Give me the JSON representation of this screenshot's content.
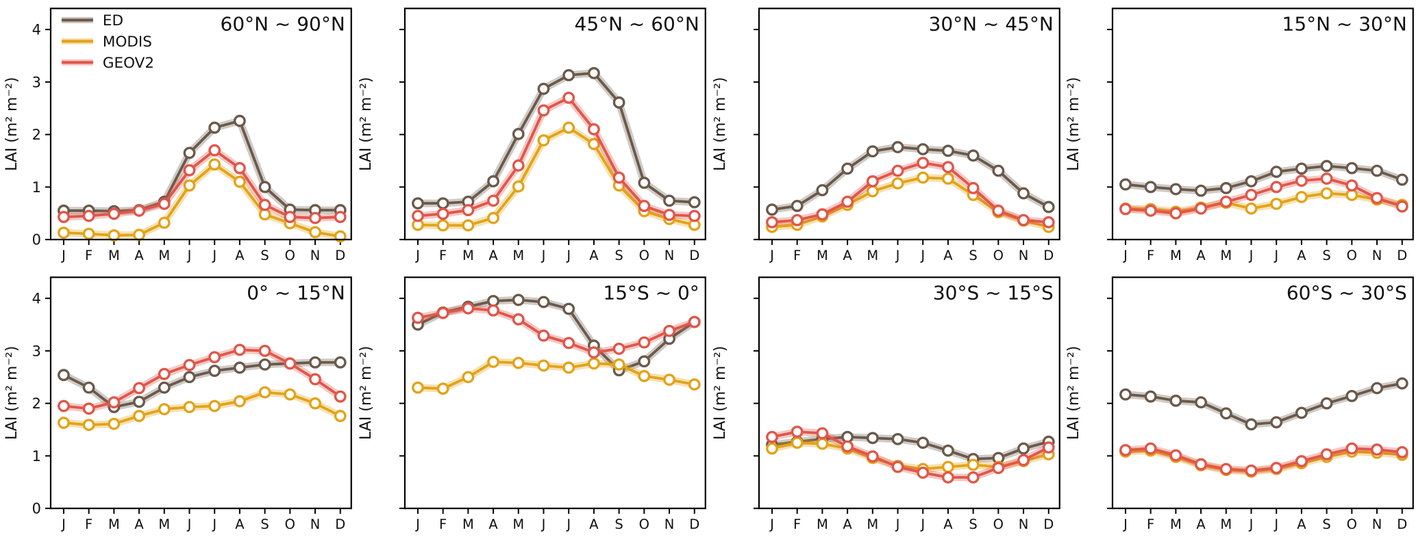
{
  "figure": {
    "ylabel": "LAI (m² m⁻²)",
    "months": [
      "J",
      "F",
      "M",
      "A",
      "M",
      "J",
      "J",
      "A",
      "S",
      "O",
      "N",
      "D"
    ],
    "yticks": [
      0,
      1,
      2,
      3,
      4
    ],
    "ylim": [
      0,
      4.4
    ],
    "legend": [
      "ED",
      "MODIS",
      "GEOV2"
    ],
    "series_colors": {
      "ED": "#6a594a",
      "MODIS": "#e2a317",
      "GEOV2": "#e0564a"
    },
    "axis_color": "#000000",
    "marker_fill": "#ffffff"
  },
  "chart_data": [
    {
      "type": "line",
      "title": "60°N ~ 90°N",
      "ylabel": "LAI (m² m⁻²)",
      "categories": [
        "J",
        "F",
        "M",
        "A",
        "M",
        "J",
        "J",
        "A",
        "S",
        "O",
        "N",
        "D"
      ],
      "ylim": [
        0,
        4.4
      ],
      "yticks": [
        0,
        1,
        2,
        3,
        4
      ],
      "y_tick_labels_visible": true,
      "legend_visible": true,
      "legend_position": "upper-left",
      "series": [
        {
          "name": "ED",
          "values": [
            0.55,
            0.55,
            0.54,
            0.56,
            0.72,
            1.65,
            2.13,
            2.26,
            1.0,
            0.57,
            0.56,
            0.56
          ]
        },
        {
          "name": "MODIS",
          "values": [
            0.13,
            0.11,
            0.08,
            0.09,
            0.32,
            1.03,
            1.43,
            1.1,
            0.48,
            0.31,
            0.14,
            0.06
          ]
        },
        {
          "name": "GEOV2",
          "values": [
            0.43,
            0.45,
            0.49,
            0.55,
            0.68,
            1.32,
            1.7,
            1.36,
            0.66,
            0.43,
            0.41,
            0.43
          ]
        }
      ]
    },
    {
      "type": "line",
      "title": "45°N ~ 60°N",
      "ylabel": "LAI (m² m⁻²)",
      "categories": [
        "J",
        "F",
        "M",
        "A",
        "M",
        "J",
        "J",
        "A",
        "S",
        "O",
        "N",
        "D"
      ],
      "ylim": [
        0,
        4.4
      ],
      "yticks": [
        0,
        1,
        2,
        3,
        4
      ],
      "y_tick_labels_visible": false,
      "legend_visible": false,
      "series": [
        {
          "name": "ED",
          "values": [
            0.69,
            0.69,
            0.72,
            1.11,
            2.01,
            2.87,
            3.13,
            3.17,
            2.61,
            1.08,
            0.74,
            0.71
          ]
        },
        {
          "name": "MODIS",
          "values": [
            0.28,
            0.27,
            0.27,
            0.41,
            1.01,
            1.89,
            2.13,
            1.82,
            1.03,
            0.54,
            0.39,
            0.28
          ]
        },
        {
          "name": "GEOV2",
          "values": [
            0.45,
            0.49,
            0.56,
            0.74,
            1.41,
            2.46,
            2.7,
            2.1,
            1.18,
            0.64,
            0.47,
            0.45
          ]
        }
      ]
    },
    {
      "type": "line",
      "title": "30°N ~ 45°N",
      "ylabel": "LAI (m² m⁻²)",
      "categories": [
        "J",
        "F",
        "M",
        "A",
        "M",
        "J",
        "J",
        "A",
        "S",
        "O",
        "N",
        "D"
      ],
      "ylim": [
        0,
        4.4
      ],
      "yticks": [
        0,
        1,
        2,
        3,
        4
      ],
      "y_tick_labels_visible": false,
      "legend_visible": false,
      "series": [
        {
          "name": "ED",
          "values": [
            0.57,
            0.64,
            0.94,
            1.35,
            1.68,
            1.76,
            1.72,
            1.69,
            1.6,
            1.31,
            0.88,
            0.62
          ]
        },
        {
          "name": "MODIS",
          "values": [
            0.24,
            0.28,
            0.44,
            0.66,
            0.92,
            1.07,
            1.18,
            1.16,
            0.85,
            0.52,
            0.36,
            0.24
          ]
        },
        {
          "name": "GEOV2",
          "values": [
            0.33,
            0.37,
            0.48,
            0.72,
            1.11,
            1.31,
            1.46,
            1.38,
            0.98,
            0.55,
            0.37,
            0.33
          ]
        }
      ]
    },
    {
      "type": "line",
      "title": "15°N ~ 30°N",
      "ylabel": "LAI (m² m⁻²)",
      "categories": [
        "J",
        "F",
        "M",
        "A",
        "M",
        "J",
        "J",
        "A",
        "S",
        "O",
        "N",
        "D"
      ],
      "ylim": [
        0,
        4.4
      ],
      "yticks": [
        0,
        1,
        2,
        3,
        4
      ],
      "y_tick_labels_visible": false,
      "legend_visible": false,
      "series": [
        {
          "name": "ED",
          "values": [
            1.05,
            1.0,
            0.96,
            0.93,
            0.98,
            1.11,
            1.29,
            1.35,
            1.4,
            1.36,
            1.31,
            1.14
          ]
        },
        {
          "name": "MODIS",
          "values": [
            0.59,
            0.58,
            0.53,
            0.61,
            0.7,
            0.59,
            0.68,
            0.81,
            0.88,
            0.85,
            0.76,
            0.66
          ]
        },
        {
          "name": "GEOV2",
          "values": [
            0.58,
            0.55,
            0.5,
            0.59,
            0.72,
            0.85,
            1.0,
            1.12,
            1.16,
            1.03,
            0.79,
            0.63
          ]
        }
      ]
    },
    {
      "type": "line",
      "title": "0° ~ 15°N",
      "ylabel": "LAI (m² m⁻²)",
      "categories": [
        "J",
        "F",
        "M",
        "A",
        "M",
        "J",
        "J",
        "A",
        "S",
        "O",
        "N",
        "D"
      ],
      "ylim": [
        0,
        4.4
      ],
      "yticks": [
        0,
        1,
        2,
        3,
        4
      ],
      "y_tick_labels_visible": true,
      "legend_visible": false,
      "series": [
        {
          "name": "ED",
          "values": [
            2.54,
            2.3,
            1.93,
            2.03,
            2.3,
            2.5,
            2.62,
            2.68,
            2.74,
            2.76,
            2.78,
            2.78
          ]
        },
        {
          "name": "MODIS",
          "values": [
            1.63,
            1.59,
            1.61,
            1.76,
            1.89,
            1.93,
            1.95,
            2.04,
            2.21,
            2.17,
            2.0,
            1.76
          ]
        },
        {
          "name": "GEOV2",
          "values": [
            1.95,
            1.9,
            2.02,
            2.29,
            2.56,
            2.73,
            2.88,
            3.02,
            3.0,
            2.76,
            2.46,
            2.13
          ]
        }
      ]
    },
    {
      "type": "line",
      "title": "15°S ~ 0°",
      "ylabel": "LAI (m² m⁻²)",
      "categories": [
        "J",
        "F",
        "M",
        "A",
        "M",
        "J",
        "J",
        "A",
        "S",
        "O",
        "N",
        "D"
      ],
      "ylim": [
        0,
        4.4
      ],
      "yticks": [
        0,
        1,
        2,
        3,
        4
      ],
      "y_tick_labels_visible": false,
      "legend_visible": false,
      "series": [
        {
          "name": "ED",
          "values": [
            3.5,
            3.73,
            3.84,
            3.95,
            3.97,
            3.93,
            3.8,
            3.1,
            2.63,
            2.8,
            3.23,
            3.55
          ]
        },
        {
          "name": "MODIS",
          "values": [
            2.3,
            2.28,
            2.5,
            2.79,
            2.77,
            2.72,
            2.68,
            2.76,
            2.74,
            2.52,
            2.45,
            2.36
          ]
        },
        {
          "name": "GEOV2",
          "values": [
            3.63,
            3.72,
            3.81,
            3.77,
            3.6,
            3.29,
            3.15,
            2.97,
            3.04,
            3.16,
            3.38,
            3.55
          ]
        }
      ]
    },
    {
      "type": "line",
      "title": "30°S ~ 15°S",
      "ylabel": "LAI (m² m⁻²)",
      "categories": [
        "J",
        "F",
        "M",
        "A",
        "M",
        "J",
        "J",
        "A",
        "S",
        "O",
        "N",
        "D"
      ],
      "ylim": [
        0,
        4.4
      ],
      "yticks": [
        0,
        1,
        2,
        3,
        4
      ],
      "y_tick_labels_visible": false,
      "legend_visible": false,
      "series": [
        {
          "name": "ED",
          "values": [
            1.21,
            1.27,
            1.32,
            1.36,
            1.34,
            1.32,
            1.25,
            1.1,
            0.94,
            0.96,
            1.14,
            1.27
          ]
        },
        {
          "name": "MODIS",
          "values": [
            1.14,
            1.25,
            1.23,
            1.14,
            0.96,
            0.81,
            0.75,
            0.79,
            0.83,
            0.79,
            0.9,
            1.03
          ]
        },
        {
          "name": "GEOV2",
          "values": [
            1.36,
            1.46,
            1.43,
            1.18,
            0.99,
            0.79,
            0.68,
            0.59,
            0.59,
            0.77,
            0.92,
            1.16
          ]
        }
      ]
    },
    {
      "type": "line",
      "title": "60°S ~ 30°S",
      "ylabel": "LAI (m² m⁻²)",
      "categories": [
        "J",
        "F",
        "M",
        "A",
        "M",
        "J",
        "J",
        "A",
        "S",
        "O",
        "N",
        "D"
      ],
      "ylim": [
        0,
        4.4
      ],
      "yticks": [
        0,
        1,
        2,
        3,
        4
      ],
      "y_tick_labels_visible": false,
      "legend_visible": false,
      "series": [
        {
          "name": "ED",
          "values": [
            2.17,
            2.13,
            2.05,
            2.02,
            1.81,
            1.6,
            1.64,
            1.82,
            2.0,
            2.14,
            2.29,
            2.38
          ]
        },
        {
          "name": "MODIS",
          "values": [
            1.08,
            1.1,
            0.98,
            0.82,
            0.73,
            0.7,
            0.75,
            0.86,
            0.98,
            1.08,
            1.06,
            1.02
          ]
        },
        {
          "name": "GEOV2",
          "values": [
            1.11,
            1.14,
            1.01,
            0.84,
            0.75,
            0.72,
            0.77,
            0.9,
            1.03,
            1.14,
            1.12,
            1.07
          ]
        }
      ]
    }
  ]
}
